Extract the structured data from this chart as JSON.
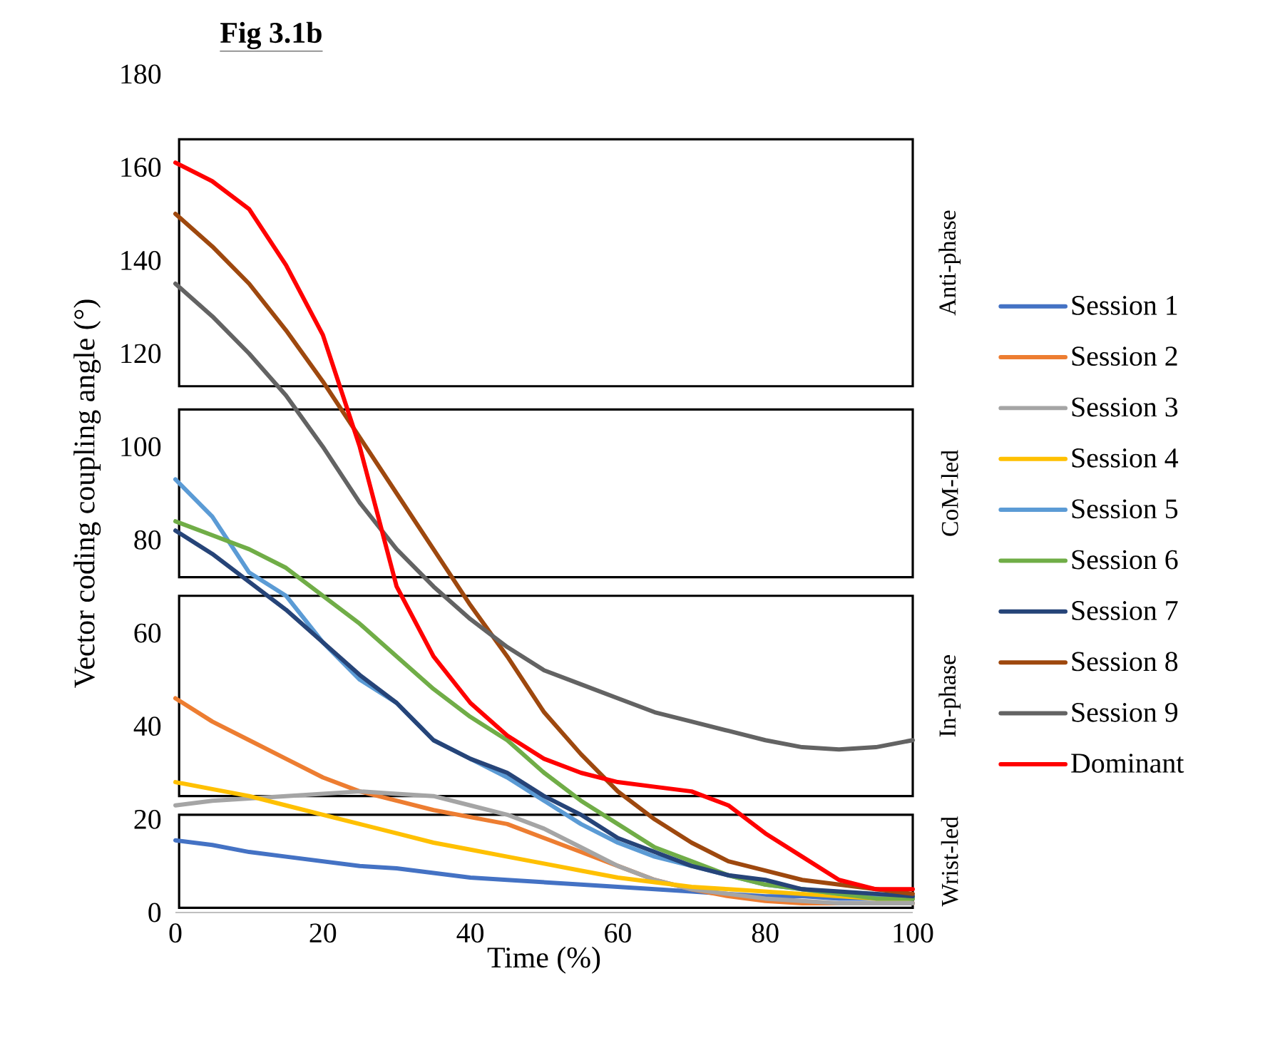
{
  "chart_data": {
    "type": "line",
    "title": "**Fig 3.1b**",
    "xlabel": "Time (%)",
    "ylabel": "Vector coding coupling angle (°)",
    "x": [
      0,
      5,
      10,
      15,
      20,
      25,
      30,
      35,
      40,
      45,
      50,
      55,
      60,
      65,
      70,
      75,
      80,
      85,
      90,
      95,
      100
    ],
    "xlim": [
      0,
      100
    ],
    "ylim": [
      0,
      180
    ],
    "xticks": [
      0,
      20,
      40,
      60,
      80,
      100
    ],
    "yticks": [
      0,
      20,
      40,
      60,
      80,
      100,
      120,
      140,
      160,
      180
    ],
    "legend": "right",
    "line_style": "solid",
    "series": [
      {
        "name": "Session 1",
        "color": "#4472c4",
        "values": [
          15.5,
          14.5,
          13,
          12,
          11,
          10,
          9.5,
          8.5,
          7.5,
          7,
          6.5,
          6,
          5.5,
          5,
          4.5,
          4,
          3.5,
          3.5,
          3,
          3,
          3
        ]
      },
      {
        "name": "Session 2",
        "color": "#ed7d31",
        "values": [
          46,
          41,
          37,
          33,
          29,
          26,
          24,
          22,
          20.5,
          19,
          16,
          13,
          10,
          7,
          5,
          3.5,
          2.5,
          2,
          2,
          2,
          2
        ]
      },
      {
        "name": "Session 3",
        "color": "#a5a5a5",
        "values": [
          23,
          24,
          24.5,
          25,
          25.5,
          26,
          25.5,
          25,
          23,
          21,
          18,
          14,
          10,
          7,
          5,
          4,
          3,
          2.5,
          2,
          2,
          2
        ]
      },
      {
        "name": "Session 4",
        "color": "#ffc000",
        "values": [
          28,
          26.5,
          25,
          23,
          21,
          19,
          17,
          15,
          13.5,
          12,
          10.5,
          9,
          7.5,
          6.5,
          5.5,
          5,
          4.5,
          4,
          3.5,
          3,
          3
        ]
      },
      {
        "name": "Session 5",
        "color": "#5b9bd5",
        "values": [
          93,
          85,
          73,
          68,
          58,
          50,
          45,
          37,
          33,
          29,
          24,
          19,
          15,
          12,
          10,
          8,
          6,
          5,
          4,
          3.5,
          3
        ]
      },
      {
        "name": "Session 6",
        "color": "#70ad47",
        "values": [
          84,
          81,
          78,
          74,
          68,
          62,
          55,
          48,
          42,
          37,
          30,
          24,
          19,
          14,
          11,
          8,
          6,
          5,
          4,
          3,
          3
        ]
      },
      {
        "name": "Session 7",
        "color": "#264478",
        "values": [
          82,
          77,
          71,
          65,
          58,
          51,
          45,
          37,
          33,
          30,
          25,
          21,
          16,
          13,
          10,
          8,
          7,
          5,
          4.5,
          4,
          3.5
        ]
      },
      {
        "name": "Session 8",
        "color": "#9e480e",
        "values": [
          150,
          143,
          135,
          125,
          114,
          102,
          90,
          78,
          66,
          55,
          43,
          34,
          26,
          20,
          15,
          11,
          9,
          7,
          6,
          5,
          4
        ]
      },
      {
        "name": "Session 9",
        "color": "#636363",
        "values": [
          135,
          128,
          120,
          111,
          100,
          88,
          78,
          70,
          63,
          57,
          52,
          49,
          46,
          43,
          41,
          39,
          37,
          35.5,
          35,
          35.5,
          37
        ]
      },
      {
        "name": "Dominant",
        "color": "#ff0000",
        "values": [
          161,
          157,
          151,
          139,
          124,
          100,
          70,
          55,
          45,
          38,
          33,
          30,
          28,
          27,
          26,
          23,
          17,
          12,
          7,
          5,
          5
        ]
      }
    ],
    "bands": [
      {
        "axis": "y",
        "from": 113,
        "to": 166,
        "label": "Anti-phase",
        "color": "#000000"
      },
      {
        "axis": "y",
        "from": 72,
        "to": 108,
        "label": "CoM-led",
        "color": "#000000"
      },
      {
        "axis": "y",
        "from": 25,
        "to": 68,
        "label": "In-phase",
        "color": "#000000"
      },
      {
        "axis": "y",
        "from": 1,
        "to": 21,
        "label": "Wrist-led",
        "color": "#000000"
      }
    ]
  }
}
